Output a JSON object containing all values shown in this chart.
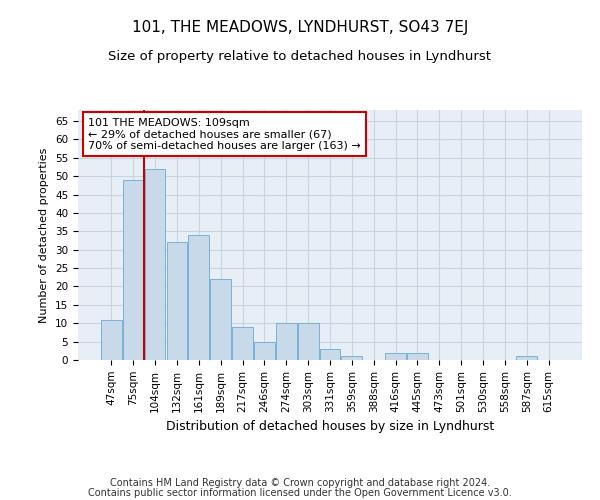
{
  "title": "101, THE MEADOWS, LYNDHURST, SO43 7EJ",
  "subtitle": "Size of property relative to detached houses in Lyndhurst",
  "xlabel": "Distribution of detached houses by size in Lyndhurst",
  "ylabel": "Number of detached properties",
  "footer_line1": "Contains HM Land Registry data © Crown copyright and database right 2024.",
  "footer_line2": "Contains public sector information licensed under the Open Government Licence v3.0.",
  "categories": [
    "47sqm",
    "75sqm",
    "104sqm",
    "132sqm",
    "161sqm",
    "189sqm",
    "217sqm",
    "246sqm",
    "274sqm",
    "303sqm",
    "331sqm",
    "359sqm",
    "388sqm",
    "416sqm",
    "445sqm",
    "473sqm",
    "501sqm",
    "530sqm",
    "558sqm",
    "587sqm",
    "615sqm"
  ],
  "values": [
    11,
    49,
    52,
    32,
    34,
    22,
    9,
    5,
    10,
    10,
    3,
    1,
    0,
    2,
    2,
    0,
    0,
    0,
    0,
    1,
    0
  ],
  "bar_color": "#c8d9ea",
  "bar_edge_color": "#6aaad4",
  "red_line_color": "#cc0000",
  "red_line_x": 1.5,
  "annotation_text_line1": "101 THE MEADOWS: 109sqm",
  "annotation_text_line2": "← 29% of detached houses are smaller (67)",
  "annotation_text_line3": "70% of semi-detached houses are larger (163) →",
  "annotation_box_edge_color": "#cc0000",
  "ylim": [
    0,
    68
  ],
  "yticks": [
    0,
    5,
    10,
    15,
    20,
    25,
    30,
    35,
    40,
    45,
    50,
    55,
    60,
    65
  ],
  "grid_color": "#c8d4e0",
  "background_color": "#e8eef5",
  "title_fontsize": 11,
  "subtitle_fontsize": 9.5,
  "xlabel_fontsize": 9,
  "ylabel_fontsize": 8,
  "tick_fontsize": 7.5,
  "annotation_fontsize": 8,
  "footer_fontsize": 7
}
